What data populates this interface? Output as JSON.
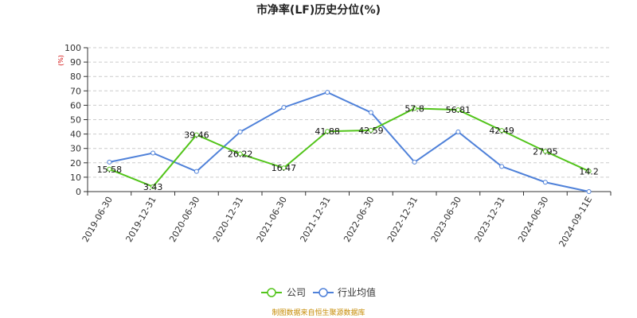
{
  "chart_data": {
    "type": "line",
    "title": "市净率(LF)历史分位(%)",
    "ylabel": "(%)",
    "ylim": [
      0,
      100
    ],
    "yticks": [
      0,
      10,
      20,
      30,
      40,
      50,
      60,
      70,
      80,
      90,
      100
    ],
    "categories": [
      "2019-06-30",
      "2019-12-31",
      "2020-06-30",
      "2020-12-31",
      "2021-06-30",
      "2021-12-31",
      "2022-06-30",
      "2022-12-31",
      "2023-06-30",
      "2023-12-31",
      "2024-06-30",
      "2024-09-11E"
    ],
    "grid": true,
    "legend_position": "bottom",
    "series": [
      {
        "name": "公司",
        "color": "#52c41a",
        "values": [
          15.58,
          3.43,
          39.46,
          26.22,
          16.47,
          41.88,
          42.59,
          57.8,
          56.81,
          42.49,
          27.95,
          14.2
        ],
        "labels": [
          "15.58",
          "3.43",
          "39.46",
          "26.22",
          "16.47",
          "41.88",
          "42.59",
          "57.8",
          "56.81",
          "42.49",
          "27.95",
          "14.2"
        ]
      },
      {
        "name": "行业均值",
        "color": "#4f81d9",
        "values": [
          20.5,
          26.8,
          14.0,
          41.5,
          58.5,
          69.0,
          55.0,
          20.5,
          41.5,
          17.5,
          6.5,
          0
        ]
      }
    ],
    "source": "制图数据来自恒生聚源数据库"
  }
}
